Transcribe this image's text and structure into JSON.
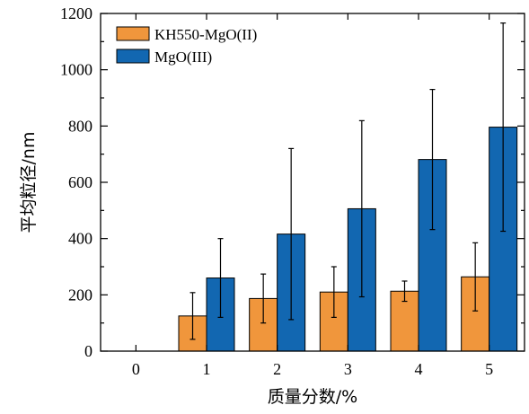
{
  "chart_data": {
    "type": "bar",
    "xlabel": "质量分数/%",
    "ylabel": "平均粒径/nm",
    "categories": [
      "0",
      "1",
      "2",
      "3",
      "4",
      "5"
    ],
    "ylim": [
      0,
      1200
    ],
    "yticks": [
      0,
      200,
      400,
      600,
      800,
      1000,
      1200
    ],
    "grid": false,
    "legend_position": "top-left",
    "series": [
      {
        "name": "KH550-MgO(II)",
        "color": "#f0963c",
        "values": [
          0,
          125,
          187,
          210,
          213,
          264
        ],
        "errors": [
          0,
          83,
          87,
          90,
          36,
          121
        ]
      },
      {
        "name": "MgO(III)",
        "color": "#1267b1",
        "values": [
          0,
          260,
          416,
          506,
          681,
          796
        ],
        "errors": [
          0,
          140,
          304,
          313,
          249,
          370
        ]
      }
    ]
  }
}
